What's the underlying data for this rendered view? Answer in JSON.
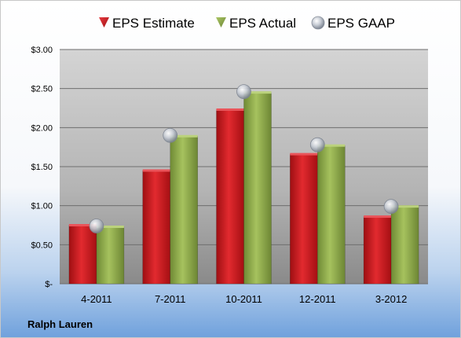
{
  "chart_data": {
    "type": "bar",
    "categories": [
      "4-2011",
      "7-2011",
      "10-2011",
      "12-2011",
      "3-2012"
    ],
    "series": [
      {
        "name": "EPS Estimate",
        "values": [
          0.75,
          1.45,
          2.23,
          1.66,
          0.86
        ],
        "color": "#c8151b"
      },
      {
        "name": "EPS Actual",
        "values": [
          0.73,
          1.89,
          2.45,
          1.77,
          0.99
        ],
        "color": "#8ca84a"
      },
      {
        "name": "EPS GAAP",
        "values": [
          0.74,
          1.9,
          2.46,
          1.78,
          0.99
        ],
        "color": "#b8c0cc",
        "marker": "sphere"
      }
    ],
    "ylim": [
      0,
      3.0
    ],
    "yticks": [
      {
        "value": 0,
        "label": "$-"
      },
      {
        "value": 0.5,
        "label": "$0.50"
      },
      {
        "value": 1.0,
        "label": "$1.00"
      },
      {
        "value": 1.5,
        "label": "$1.50"
      },
      {
        "value": 2.0,
        "label": "$2.00"
      },
      {
        "value": 2.5,
        "label": "$2.50"
      },
      {
        "value": 3.0,
        "label": "$3.00"
      }
    ],
    "grid": true,
    "legend_position": "top",
    "footer_label": "Ralph Lauren"
  }
}
